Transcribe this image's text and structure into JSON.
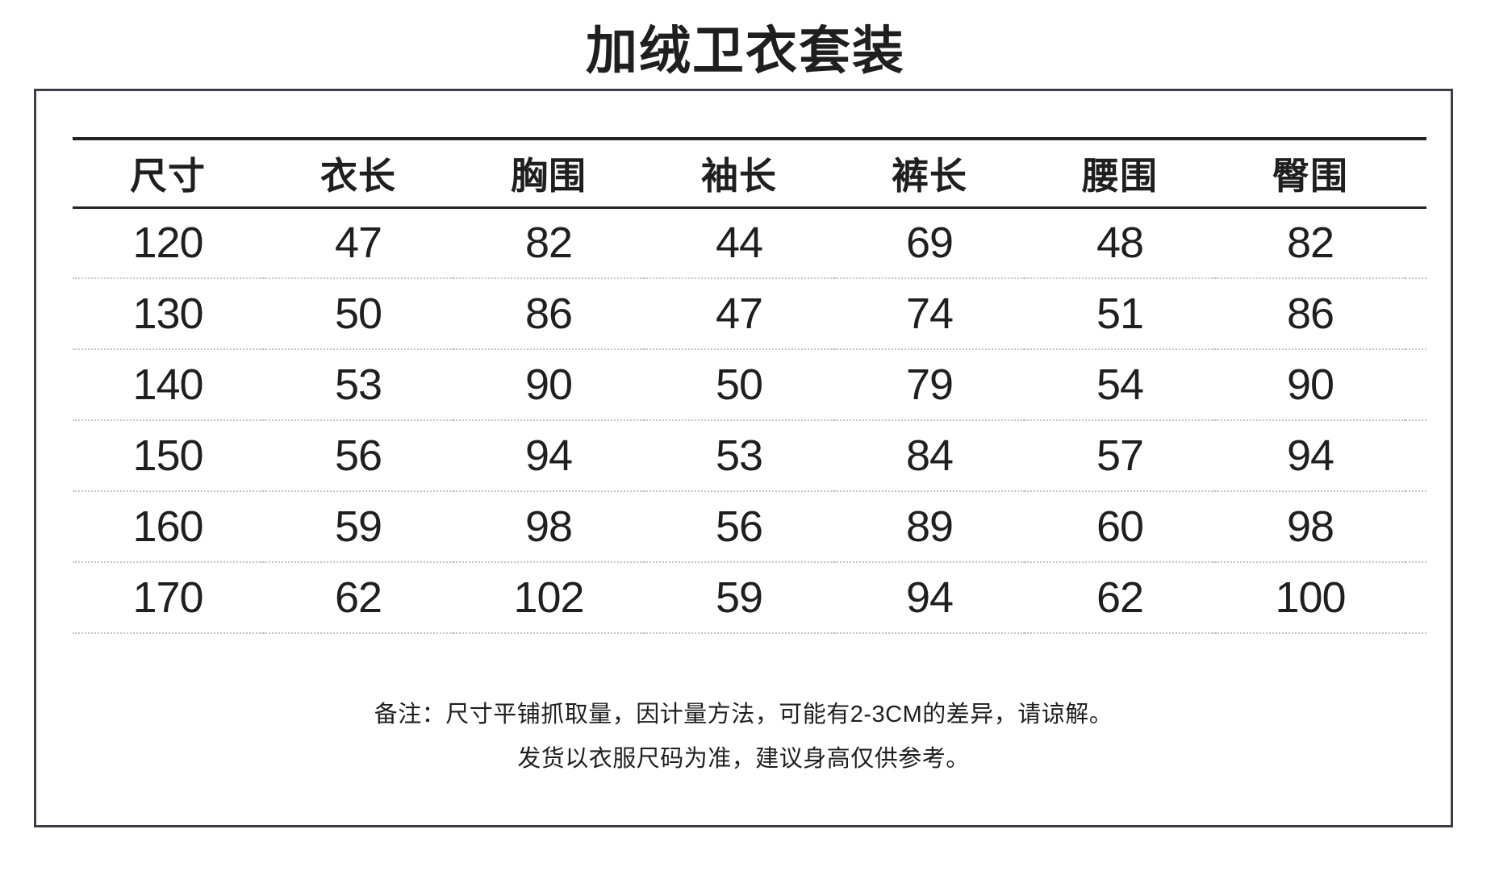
{
  "title": "加绒卫衣套装",
  "chart_data": {
    "type": "table",
    "title": "加绒卫衣套装",
    "columns": [
      "尺寸",
      "衣长",
      "胸围",
      "袖长",
      "裤长",
      "腰围",
      "臀围"
    ],
    "rows": [
      [
        120,
        47,
        82,
        44,
        69,
        48,
        82
      ],
      [
        130,
        50,
        86,
        47,
        74,
        51,
        86
      ],
      [
        140,
        53,
        90,
        50,
        79,
        54,
        90
      ],
      [
        150,
        56,
        94,
        53,
        84,
        57,
        94
      ],
      [
        160,
        59,
        98,
        56,
        89,
        60,
        98
      ],
      [
        170,
        62,
        102,
        59,
        94,
        62,
        100
      ]
    ],
    "notes": [
      "备注：尺寸平铺抓取量，因计量方法，可能有2-3CM的差异，请谅解。",
      "发货以衣服尺码为准，建议身高仅供参考。"
    ],
    "layout_hints": {
      "grid": "horizontal row dividers only, dotted",
      "header_rules": "solid dark lines above and below header row",
      "units": "cm (implied)"
    }
  },
  "colors": {
    "text": "#1f1f1f",
    "panel_border": "#3d3d47",
    "header_rule": "#242424",
    "row_divider": "#c6c6c6",
    "background": "#ffffff"
  }
}
